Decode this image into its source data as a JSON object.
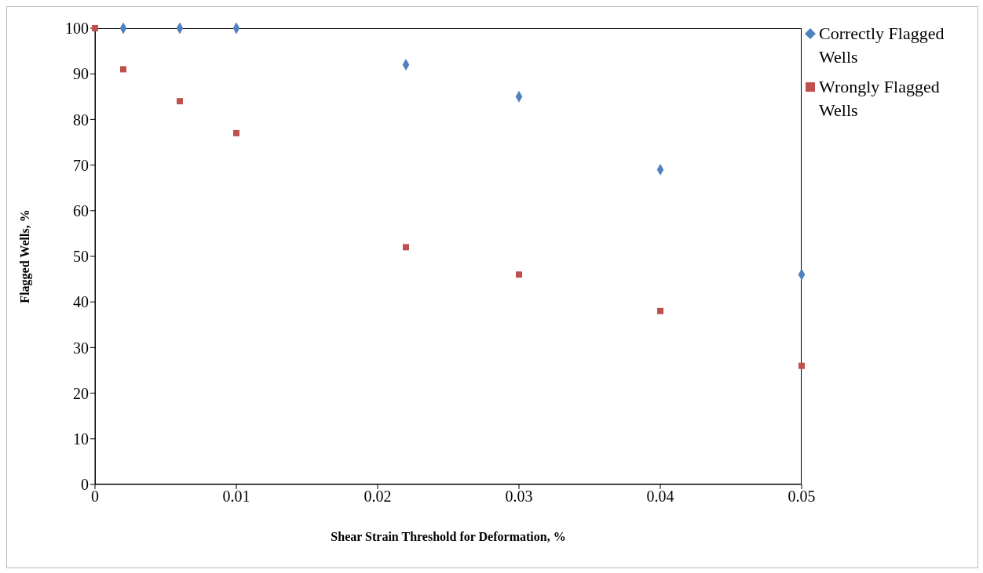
{
  "chart_data": {
    "type": "scatter",
    "xlabel": "Shear Strain Threshold for Deformation, %",
    "ylabel": "Flagged Wells, %",
    "xlim": [
      0,
      0.05
    ],
    "xticks": [
      0,
      0.01,
      0.02,
      0.03,
      0.04,
      0.05
    ],
    "ylim": [
      0,
      100
    ],
    "yticks": [
      0,
      10,
      20,
      30,
      40,
      50,
      60,
      70,
      80,
      90,
      100
    ],
    "grid": false,
    "legend": "right",
    "series": [
      {
        "name": "Correctly Flagged Wells",
        "color": "#4f81bd",
        "marker": "diamond",
        "x": [
          0.002,
          0.006,
          0.01,
          0.022,
          0.03,
          0.04,
          0.05
        ],
        "values": [
          100,
          100,
          100,
          92,
          85,
          69,
          46
        ]
      },
      {
        "name": "Wrongly Flagged Wells",
        "color": "#c0504d",
        "marker": "square",
        "x": [
          0,
          0.002,
          0.006,
          0.01,
          0.022,
          0.03,
          0.04,
          0.05
        ],
        "values": [
          100,
          91,
          84,
          77,
          52,
          46,
          38,
          26
        ]
      }
    ]
  }
}
